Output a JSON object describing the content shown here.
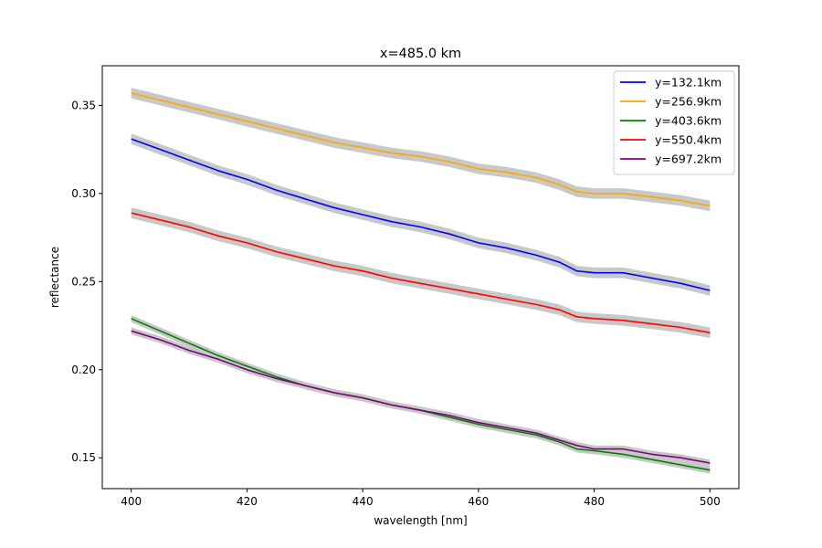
{
  "chart_data": {
    "type": "line",
    "title": "x=485.0 km",
    "xlabel": "wavelength [nm]",
    "ylabel": "reflectance",
    "xlim": [
      395,
      505
    ],
    "ylim": [
      0.1325,
      0.3725
    ],
    "xticks": [
      400,
      420,
      440,
      460,
      480,
      500
    ],
    "xtick_labels": [
      "400",
      "420",
      "440",
      "460",
      "480",
      "500"
    ],
    "yticks": [
      0.15,
      0.2,
      0.25,
      0.3,
      0.35
    ],
    "ytick_labels": [
      "0.15",
      "0.20",
      "0.25",
      "0.30",
      "0.35"
    ],
    "grid": false,
    "legend_position": "upper-right",
    "uncertainty_band_color": "#c8c8c8",
    "x": [
      400,
      405,
      410,
      415,
      420,
      425,
      430,
      435,
      440,
      445,
      450,
      455,
      460,
      465,
      470,
      474,
      477,
      480,
      485,
      490,
      495,
      500
    ],
    "series": [
      {
        "name": "y=132.1km",
        "color": "#0000ff",
        "band": 0.003,
        "values": [
          0.331,
          0.325,
          0.319,
          0.313,
          0.308,
          0.302,
          0.297,
          0.292,
          0.288,
          0.284,
          0.281,
          0.277,
          0.272,
          0.269,
          0.265,
          0.261,
          0.256,
          0.255,
          0.255,
          0.252,
          0.249,
          0.245
        ]
      },
      {
        "name": "y=256.9km",
        "color": "#ffa500",
        "band": 0.003,
        "values": [
          0.357,
          0.353,
          0.349,
          0.345,
          0.341,
          0.337,
          0.333,
          0.329,
          0.326,
          0.323,
          0.321,
          0.318,
          0.314,
          0.312,
          0.309,
          0.305,
          0.301,
          0.3,
          0.3,
          0.298,
          0.296,
          0.293
        ]
      },
      {
        "name": "y=403.6km",
        "color": "#008000",
        "band": 0.002,
        "values": [
          0.229,
          0.222,
          0.215,
          0.208,
          0.202,
          0.196,
          0.191,
          0.187,
          0.184,
          0.18,
          0.177,
          0.173,
          0.169,
          0.166,
          0.163,
          0.159,
          0.155,
          0.154,
          0.152,
          0.149,
          0.146,
          0.143
        ]
      },
      {
        "name": "y=550.4km",
        "color": "#ff0000",
        "band": 0.003,
        "values": [
          0.289,
          0.285,
          0.281,
          0.276,
          0.272,
          0.267,
          0.263,
          0.259,
          0.256,
          0.252,
          0.249,
          0.246,
          0.243,
          0.24,
          0.237,
          0.234,
          0.23,
          0.229,
          0.228,
          0.226,
          0.224,
          0.221
        ]
      },
      {
        "name": "y=697.2km",
        "color": "#800080",
        "band": 0.002,
        "values": [
          0.222,
          0.217,
          0.211,
          0.206,
          0.2,
          0.195,
          0.191,
          0.187,
          0.184,
          0.18,
          0.177,
          0.174,
          0.17,
          0.167,
          0.164,
          0.16,
          0.157,
          0.155,
          0.155,
          0.152,
          0.15,
          0.147
        ]
      }
    ]
  }
}
